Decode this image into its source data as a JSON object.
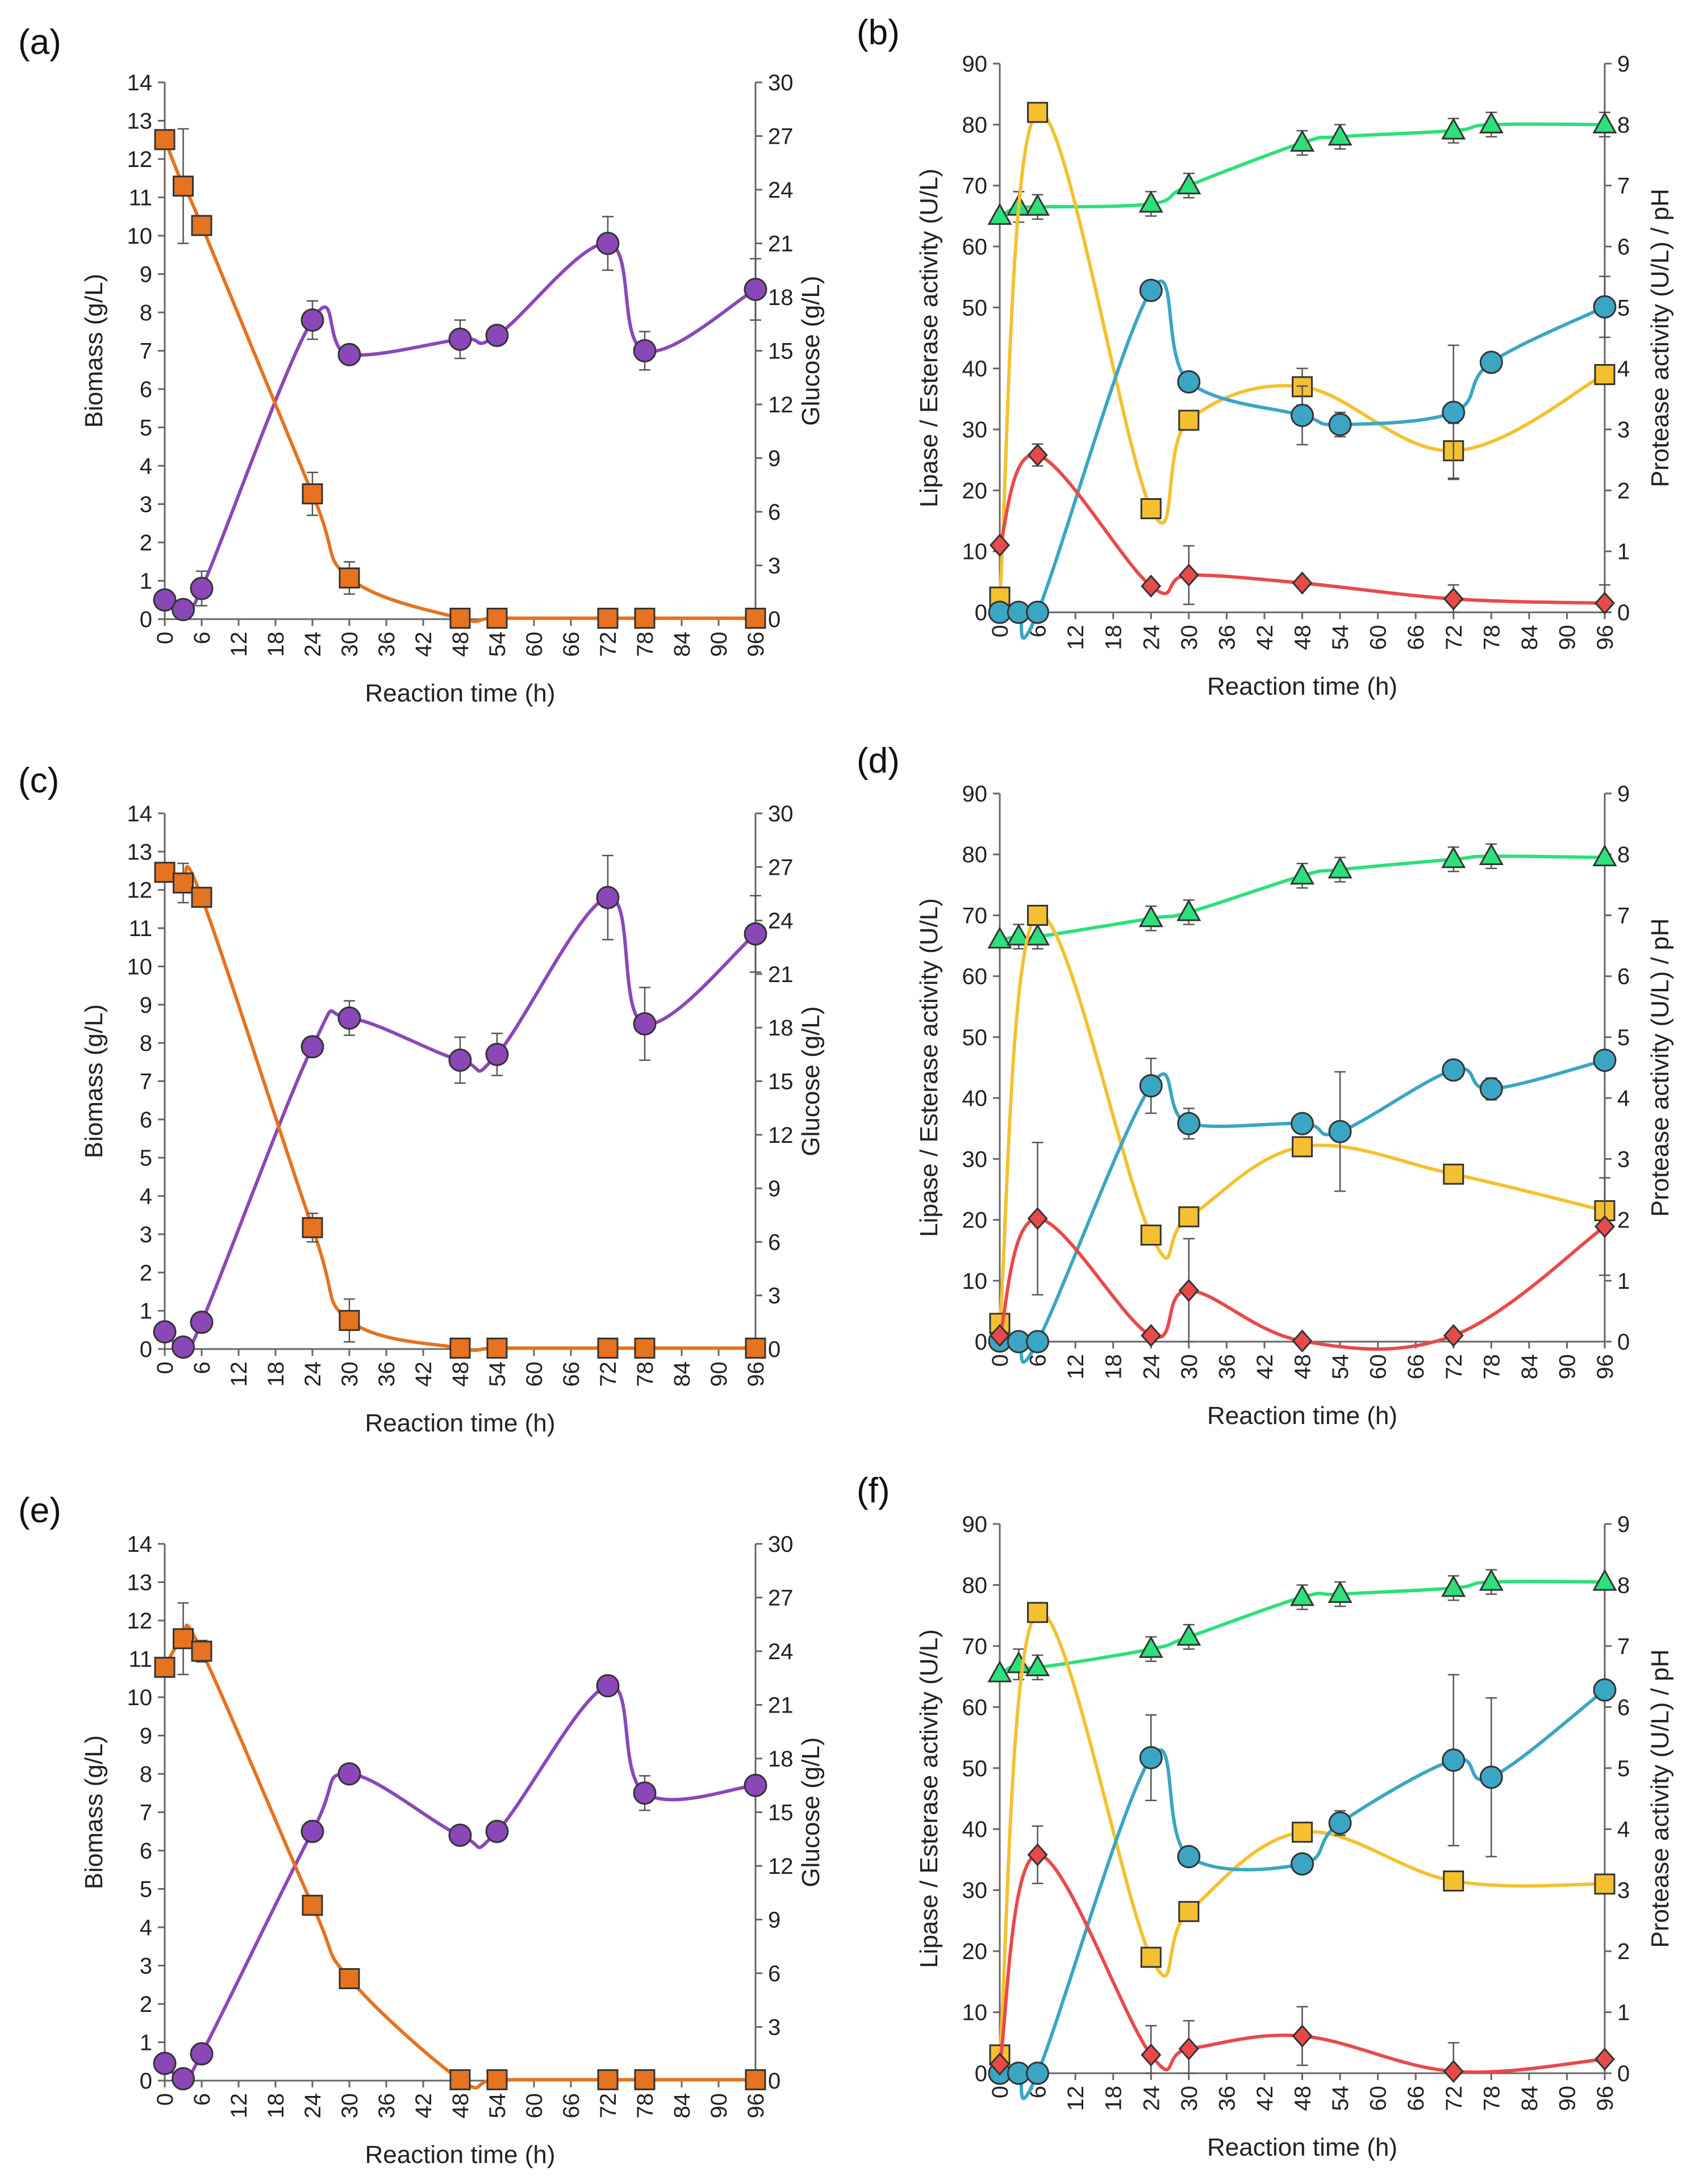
{
  "chart_data": [
    {
      "panel": "(a)",
      "type": "line",
      "xlabel": "Reaction time (h)",
      "ylabel": "Biomass (g/L)",
      "y2label": "Glucose (g/L)",
      "xlim": [
        0,
        96
      ],
      "ylim": [
        0,
        14
      ],
      "y2lim": [
        0,
        30
      ],
      "xticks": [
        "0",
        "6",
        "12",
        "18",
        "24",
        "30",
        "36",
        "42",
        "48",
        "54",
        "60",
        "66",
        "72",
        "78",
        "84",
        "90",
        "96"
      ],
      "yticks": [
        "0",
        "1",
        "2",
        "3",
        "4",
        "5",
        "6",
        "7",
        "8",
        "9",
        "10",
        "11",
        "12",
        "13",
        "14"
      ],
      "y2ticks": [
        "0",
        "3",
        "6",
        "9",
        "12",
        "15",
        "18",
        "21",
        "24",
        "27",
        "30"
      ],
      "series": [
        {
          "name": "Biomass",
          "axis": "left",
          "color": "#8B47B8",
          "marker": "circle",
          "x": [
            0,
            3,
            6,
            24,
            30,
            48,
            54,
            72,
            78,
            96
          ],
          "values": [
            0.5,
            0.25,
            0.8,
            7.8,
            6.9,
            7.3,
            7.4,
            9.8,
            7.0,
            8.6
          ],
          "err": [
            0,
            0,
            0.45,
            0.5,
            0,
            0.5,
            0,
            0.7,
            0.5,
            0.8
          ]
        },
        {
          "name": "Glucose",
          "axis": "right",
          "color": "#E5731F",
          "marker": "square",
          "x": [
            0,
            3,
            6,
            24,
            30,
            48,
            54,
            72,
            78,
            96
          ],
          "values": [
            26.8,
            24.2,
            22.0,
            7.0,
            2.3,
            0.05,
            0.05,
            0.05,
            0.05,
            0.05
          ],
          "err": [
            0,
            3.2,
            0,
            1.2,
            0.9,
            0,
            0,
            0,
            0,
            0
          ]
        }
      ]
    },
    {
      "panel": "(b)",
      "type": "line",
      "xlabel": "Reaction time (h)",
      "ylabel": "Lipase / Esterase activity (U/L)",
      "y2label": "Protease activity (U/L)  /  pH",
      "xlim": [
        0,
        96
      ],
      "ylim": [
        0,
        90
      ],
      "y2lim": [
        0,
        9
      ],
      "xticks": [
        "0",
        "6",
        "12",
        "18",
        "24",
        "30",
        "36",
        "42",
        "48",
        "54",
        "60",
        "66",
        "72",
        "78",
        "84",
        "90",
        "96"
      ],
      "yticks": [
        "0",
        "10",
        "20",
        "30",
        "40",
        "50",
        "60",
        "70",
        "80",
        "90"
      ],
      "y2ticks": [
        "0",
        "1",
        "2",
        "3",
        "4",
        "5",
        "6",
        "7",
        "8",
        "9"
      ],
      "series": [
        {
          "name": "pH",
          "axis": "right",
          "color": "#2CE07A",
          "marker": "triangle",
          "x": [
            0,
            3,
            6,
            24,
            30,
            48,
            54,
            72,
            78,
            96
          ],
          "values": [
            6.5,
            6.65,
            6.65,
            6.7,
            7.0,
            7.7,
            7.8,
            7.9,
            8.0,
            8.0
          ],
          "err": [
            0,
            0.25,
            0.2,
            0.2,
            0.2,
            0.2,
            0.2,
            0.2,
            0.2,
            0.2
          ]
        },
        {
          "name": "Protease",
          "axis": "right",
          "color": "#F5C030",
          "marker": "square",
          "x": [
            0,
            6,
            24,
            30,
            48,
            72,
            96
          ],
          "values": [
            0.25,
            8.2,
            1.7,
            3.15,
            3.7,
            2.65,
            3.9
          ],
          "err": [
            0,
            0,
            0,
            0,
            0.3,
            0.45,
            0
          ]
        },
        {
          "name": "Lipase",
          "axis": "left",
          "color": "#3BA6C3",
          "marker": "circle",
          "x": [
            0,
            3,
            6,
            24,
            30,
            48,
            54,
            72,
            78,
            96
          ],
          "values": [
            0,
            0,
            0,
            52.8,
            37.8,
            32.3,
            30.8,
            32.8,
            41.0,
            50.1
          ],
          "err": [
            0,
            0,
            0,
            0,
            0,
            4.8,
            2,
            11,
            0,
            5
          ]
        },
        {
          "name": "Esterase",
          "axis": "left",
          "color": "#E84A4A",
          "marker": "diamond",
          "x": [
            0,
            6,
            24,
            30,
            48,
            72,
            96
          ],
          "values": [
            11.0,
            25.8,
            4.3,
            6.1,
            4.8,
            2.2,
            1.5
          ],
          "err": [
            0,
            1.8,
            0,
            4.8,
            0,
            2.3,
            3
          ]
        }
      ]
    },
    {
      "panel": "(c)",
      "type": "line",
      "xlabel": "Reaction time (h)",
      "ylabel": "Biomass (g/L)",
      "y2label": "Glucose (g/L)",
      "xlim": [
        0,
        96
      ],
      "ylim": [
        0,
        14
      ],
      "y2lim": [
        0,
        30
      ],
      "xticks": [
        "0",
        "6",
        "12",
        "18",
        "24",
        "30",
        "36",
        "42",
        "48",
        "54",
        "60",
        "66",
        "72",
        "78",
        "84",
        "90",
        "96"
      ],
      "yticks": [
        "0",
        "1",
        "2",
        "3",
        "4",
        "5",
        "6",
        "7",
        "8",
        "9",
        "10",
        "11",
        "12",
        "13",
        "14"
      ],
      "y2ticks": [
        "0",
        "3",
        "6",
        "9",
        "12",
        "15",
        "18",
        "21",
        "24",
        "27",
        "30"
      ],
      "series": [
        {
          "name": "Biomass",
          "axis": "left",
          "color": "#8B47B8",
          "marker": "circle",
          "x": [
            0,
            3,
            6,
            24,
            30,
            48,
            54,
            72,
            78,
            96
          ],
          "values": [
            0.45,
            0.05,
            0.7,
            7.9,
            8.65,
            7.55,
            7.7,
            11.8,
            8.5,
            10.85
          ],
          "err": [
            0,
            0,
            0,
            0.2,
            0.45,
            0.6,
            0.55,
            1.1,
            0.95,
            1.0
          ]
        },
        {
          "name": "Glucose",
          "axis": "right",
          "color": "#E5731F",
          "marker": "square",
          "x": [
            0,
            3,
            6,
            24,
            30,
            48,
            54,
            72,
            78,
            96
          ],
          "values": [
            26.7,
            26.1,
            25.3,
            6.8,
            1.6,
            0.05,
            0.05,
            0.05,
            0.05,
            0.05
          ],
          "err": [
            0,
            1.1,
            0,
            0.8,
            1.2,
            0,
            0,
            0,
            0,
            0
          ]
        }
      ]
    },
    {
      "panel": "(d)",
      "type": "line",
      "xlabel": "Reaction time (h)",
      "ylabel": "Lipase / Esterase activity (U/L)",
      "y2label": "Protease activity (U/L)  /  pH",
      "xlim": [
        0,
        96
      ],
      "ylim": [
        0,
        90
      ],
      "y2lim": [
        0,
        9
      ],
      "xticks": [
        "0",
        "6",
        "12",
        "18",
        "24",
        "30",
        "36",
        "42",
        "48",
        "54",
        "60",
        "66",
        "72",
        "78",
        "84",
        "90",
        "96"
      ],
      "yticks": [
        "0",
        "10",
        "20",
        "30",
        "40",
        "50",
        "60",
        "70",
        "80",
        "90"
      ],
      "y2ticks": [
        "0",
        "1",
        "2",
        "3",
        "4",
        "5",
        "6",
        "7",
        "8",
        "9"
      ],
      "series": [
        {
          "name": "pH",
          "axis": "right",
          "color": "#2CE07A",
          "marker": "triangle",
          "x": [
            0,
            3,
            6,
            24,
            30,
            48,
            54,
            72,
            78,
            96
          ],
          "values": [
            6.6,
            6.65,
            6.65,
            6.95,
            7.05,
            7.65,
            7.75,
            7.92,
            7.97,
            7.95
          ],
          "err": [
            0,
            0.2,
            0.2,
            0.2,
            0.2,
            0.2,
            0.2,
            0.2,
            0.2,
            0
          ]
        },
        {
          "name": "Protease",
          "axis": "right",
          "color": "#F5C030",
          "marker": "square",
          "x": [
            0,
            6,
            24,
            30,
            48,
            72,
            96
          ],
          "values": [
            0.3,
            7.0,
            1.75,
            2.05,
            3.2,
            2.75,
            2.15
          ],
          "err": [
            0,
            0,
            0,
            0,
            0,
            0,
            0
          ]
        },
        {
          "name": "Lipase",
          "axis": "left",
          "color": "#3BA6C3",
          "marker": "circle",
          "x": [
            0,
            3,
            6,
            24,
            30,
            48,
            54,
            72,
            78,
            96
          ],
          "values": [
            0.1,
            0,
            0,
            42.0,
            35.8,
            35.8,
            34.5,
            44.6,
            41.5,
            46.2
          ],
          "err": [
            0,
            0,
            0,
            4.5,
            2.5,
            0,
            9.8,
            0,
            1.8,
            0
          ]
        },
        {
          "name": "Esterase",
          "axis": "left",
          "color": "#E84A4A",
          "marker": "diamond",
          "x": [
            0,
            6,
            24,
            30,
            48,
            72,
            96
          ],
          "values": [
            1.0,
            20.2,
            1.0,
            8.4,
            0.1,
            1.0,
            18.9
          ],
          "err": [
            0,
            12.5,
            0,
            8.5,
            0,
            0,
            8
          ]
        }
      ]
    },
    {
      "panel": "(e)",
      "type": "line",
      "xlabel": "Reaction time (h)",
      "ylabel": "Biomass (g/L)",
      "y2label": "Glucose (g/L)",
      "xlim": [
        0,
        96
      ],
      "ylim": [
        0,
        14
      ],
      "y2lim": [
        0,
        30
      ],
      "xticks": [
        "0",
        "6",
        "12",
        "18",
        "24",
        "30",
        "36",
        "42",
        "48",
        "54",
        "60",
        "66",
        "72",
        "78",
        "84",
        "90",
        "96"
      ],
      "yticks": [
        "0",
        "1",
        "2",
        "3",
        "4",
        "5",
        "6",
        "7",
        "8",
        "9",
        "10",
        "11",
        "12",
        "13",
        "14"
      ],
      "y2ticks": [
        "0",
        "3",
        "6",
        "9",
        "12",
        "15",
        "18",
        "21",
        "24",
        "27",
        "30"
      ],
      "series": [
        {
          "name": "Biomass",
          "axis": "left",
          "color": "#8B47B8",
          "marker": "circle",
          "x": [
            0,
            3,
            6,
            24,
            30,
            48,
            54,
            72,
            78,
            96
          ],
          "values": [
            0.45,
            0.05,
            0.7,
            6.5,
            8.0,
            6.4,
            6.5,
            10.3,
            7.5,
            7.7
          ],
          "err": [
            0,
            0,
            0,
            0,
            0,
            0,
            0,
            0.2,
            0.45,
            0
          ]
        },
        {
          "name": "Glucose",
          "axis": "right",
          "color": "#E5731F",
          "marker": "square",
          "x": [
            0,
            3,
            6,
            24,
            30,
            48,
            54,
            72,
            78,
            96
          ],
          "values": [
            23.1,
            24.7,
            24.0,
            9.8,
            5.7,
            0.05,
            0.05,
            0.05,
            0.05,
            0.05
          ],
          "err": [
            0,
            2.0,
            0.6,
            0,
            0.4,
            0,
            0,
            0,
            0,
            0
          ]
        }
      ]
    },
    {
      "panel": "(f)",
      "type": "line",
      "xlabel": "Reaction time (h)",
      "ylabel": "Lipase / Esterase activity (U/L)",
      "y2label": "Protease activity (U/L)  /  pH",
      "xlim": [
        0,
        96
      ],
      "ylim": [
        0,
        90
      ],
      "y2lim": [
        0,
        9
      ],
      "xticks": [
        "0",
        "6",
        "12",
        "18",
        "24",
        "30",
        "36",
        "42",
        "48",
        "54",
        "60",
        "66",
        "72",
        "78",
        "84",
        "90",
        "96"
      ],
      "yticks": [
        "0",
        "10",
        "20",
        "30",
        "40",
        "50",
        "60",
        "70",
        "80",
        "90"
      ],
      "y2ticks": [
        "0",
        "1",
        "2",
        "3",
        "4",
        "5",
        "6",
        "7",
        "8",
        "9"
      ],
      "series": [
        {
          "name": "pH",
          "axis": "right",
          "color": "#2CE07A",
          "marker": "triangle",
          "x": [
            0,
            3,
            6,
            24,
            30,
            48,
            54,
            72,
            78,
            96
          ],
          "values": [
            6.55,
            6.7,
            6.65,
            6.95,
            7.15,
            7.8,
            7.85,
            7.95,
            8.05,
            8.05
          ],
          "err": [
            0,
            0.25,
            0.2,
            0.2,
            0.2,
            0.2,
            0.2,
            0.2,
            0.2,
            0
          ]
        },
        {
          "name": "Protease",
          "axis": "right",
          "color": "#F5C030",
          "marker": "square",
          "x": [
            0,
            6,
            24,
            30,
            48,
            72,
            96
          ],
          "values": [
            0.3,
            7.55,
            1.9,
            2.65,
            3.95,
            3.15,
            3.1
          ],
          "err": [
            0,
            0,
            0,
            0,
            0,
            0,
            0
          ]
        },
        {
          "name": "Lipase",
          "axis": "left",
          "color": "#3BA6C3",
          "marker": "circle",
          "x": [
            0,
            3,
            6,
            24,
            30,
            48,
            54,
            72,
            78,
            96
          ],
          "values": [
            0,
            0,
            0,
            51.7,
            35.5,
            34.3,
            41.0,
            51.3,
            48.5,
            62.8
          ],
          "err": [
            0,
            0,
            0,
            7,
            0,
            0,
            2,
            14,
            13,
            0
          ]
        },
        {
          "name": "Esterase",
          "axis": "left",
          "color": "#E84A4A",
          "marker": "diamond",
          "x": [
            0,
            6,
            24,
            30,
            48,
            72,
            96
          ],
          "values": [
            1.5,
            35.8,
            3.0,
            4.0,
            6.1,
            0.3,
            2.3
          ],
          "err": [
            0,
            4.7,
            4.8,
            4.6,
            4.8,
            4.7,
            0
          ]
        }
      ]
    }
  ]
}
